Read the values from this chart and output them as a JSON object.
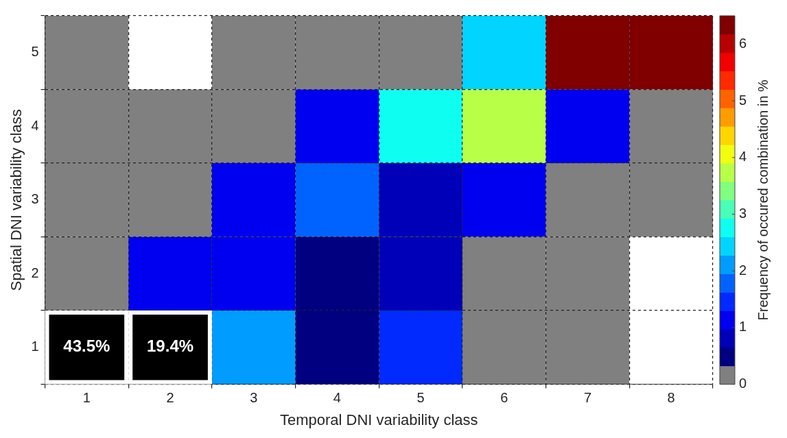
{
  "chart_data": {
    "type": "heatmap",
    "xlabel": "Temporal DNI variability class",
    "ylabel": "Spatial DNI variability class",
    "clabel": "Frequency of occured combination in %",
    "categories": [
      "1",
      "2",
      "3",
      "4",
      "5",
      "6",
      "7",
      "8"
    ],
    "y_categories": [
      "5",
      "4",
      "3",
      "2",
      "1"
    ],
    "cells": [
      [
        0.1,
        null,
        0.1,
        0.1,
        0.1,
        2.4,
        6.3,
        6.3
      ],
      [
        0.1,
        0.1,
        0.1,
        1.1,
        2.8,
        3.6,
        1.1,
        0.1
      ],
      [
        0.1,
        0.1,
        1.1,
        1.7,
        0.8,
        1.1,
        0.1,
        0.1
      ],
      [
        0.1,
        1.1,
        1.1,
        0.5,
        0.8,
        0.1,
        0.1,
        null
      ],
      [
        null,
        null,
        2.1,
        0.5,
        1.5,
        0.1,
        0.1,
        null
      ]
    ],
    "cell_labels": [
      [
        null,
        null,
        null,
        null,
        null,
        null,
        null,
        null
      ],
      [
        null,
        null,
        null,
        null,
        null,
        null,
        null,
        null
      ],
      [
        null,
        null,
        null,
        null,
        null,
        null,
        null,
        null
      ],
      [
        null,
        null,
        null,
        null,
        null,
        null,
        null,
        null
      ],
      [
        "43.5%",
        "19.4%",
        null,
        null,
        null,
        null,
        null,
        null
      ]
    ],
    "clim": [
      0,
      6.5
    ],
    "cticks": [
      0,
      1,
      2,
      3,
      4,
      5,
      6
    ],
    "grid": true
  }
}
